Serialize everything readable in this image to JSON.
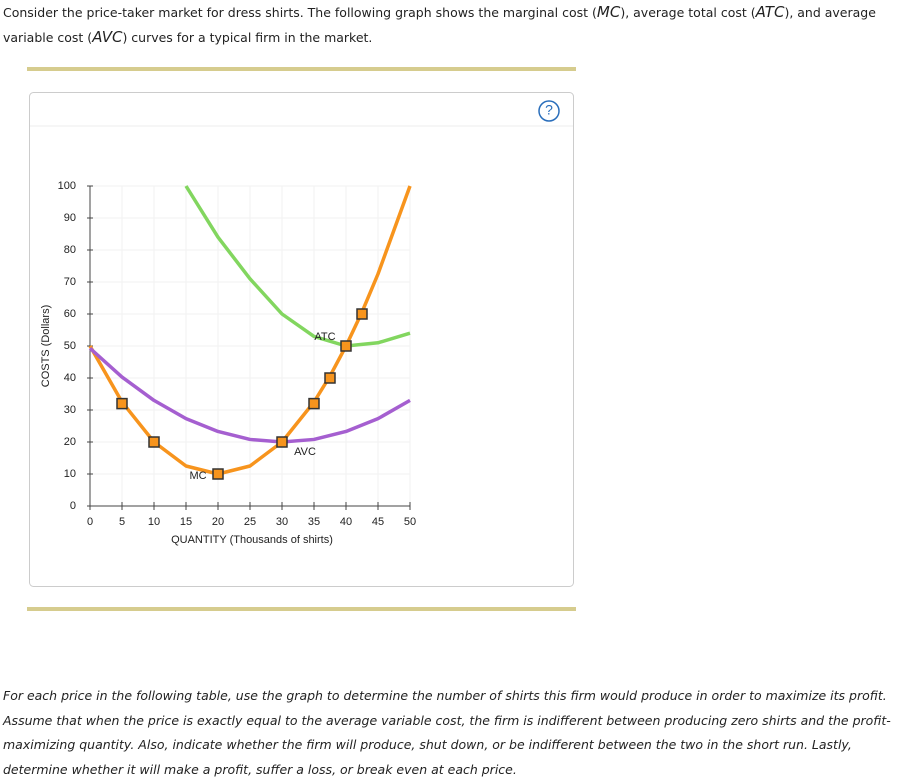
{
  "intro": [
    "Consider the price-taker market for dress shirts. The following graph shows the marginal cost (",
    "MC",
    "), average total cost (",
    "ATC",
    "), and average variable cost (",
    "AVC",
    ") curves for a typical firm in the market."
  ],
  "help": "?",
  "chart_data": {
    "type": "line",
    "xlabel": "QUANTITY (Thousands of shirts)",
    "ylabel": "COSTS (Dollars)",
    "xlim": [
      0,
      50
    ],
    "xticks": [
      0,
      5,
      10,
      15,
      20,
      25,
      30,
      35,
      40,
      45,
      50
    ],
    "ylim": [
      0,
      100
    ],
    "yticks": [
      0,
      10,
      20,
      30,
      40,
      50,
      60,
      70,
      80,
      90,
      100
    ],
    "grid": true,
    "series": [
      {
        "name": "MC",
        "color": "#f7941d",
        "x": [
          0,
          5,
          10,
          15,
          20,
          25,
          30,
          35,
          37.5,
          40,
          42.5,
          45,
          50
        ],
        "values": [
          50,
          32.5,
          20,
          12.5,
          10,
          12.5,
          20,
          32.5,
          40.6,
          50,
          60.6,
          72.5,
          100
        ]
      },
      {
        "name": "ATC",
        "color": "#82d65f",
        "x": [
          15,
          20,
          25,
          30,
          35,
          40,
          45,
          50
        ],
        "values": [
          100,
          84,
          71,
          60,
          53,
          50,
          51,
          54
        ]
      },
      {
        "name": "AVC",
        "color": "#a55fd0",
        "x": [
          0,
          5,
          10,
          15,
          20,
          25,
          30,
          35,
          40,
          45,
          50
        ],
        "values": [
          49.3,
          40.3,
          33,
          27.3,
          23.3,
          20.8,
          20,
          20.8,
          23.3,
          27.3,
          33
        ]
      }
    ],
    "markers": {
      "color": "#f7941d",
      "x": [
        5,
        10,
        20,
        30,
        35,
        37.5,
        40,
        42.5
      ],
      "values": [
        32,
        20,
        10,
        20,
        32,
        40,
        50,
        60
      ]
    }
  },
  "instructions": "For each price in the following table, use the graph to determine the number of shirts this firm would produce in order to maximize its profit. Assume that when the price is exactly equal to the average variable cost, the firm is indifferent between producing zero shirts and the profit-maximizing quantity. Also, indicate whether the firm will produce, shut down, or be indifferent between the two in the short run. Lastly, determine whether it will make a profit, suffer a loss, or break even at each price."
}
